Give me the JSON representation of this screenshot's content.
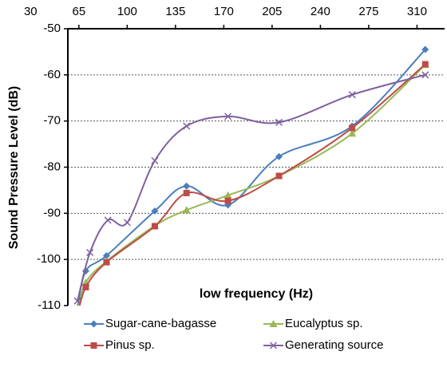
{
  "chart_data": {
    "type": "line",
    "x_label": "low frequency (Hz)",
    "y_label": "Sound Pressure Level (dB)",
    "xlim": [
      57,
      330
    ],
    "xticks": [
      30,
      65,
      100,
      135,
      170,
      205,
      240,
      275,
      310
    ],
    "ylim": [
      -110,
      -50
    ],
    "yticks": [
      -110,
      -100,
      -90,
      -80,
      -70,
      -60,
      -50
    ],
    "grid": true,
    "smooth": true,
    "legend": "bottom",
    "series": [
      {
        "name": "Sugar-cane-bagasse",
        "color": "#4a7ebb",
        "marker": "diamond",
        "x": [
          64,
          70,
          85,
          120,
          143,
          173,
          210,
          263,
          316
        ],
        "values": [
          -110.5,
          -102.5,
          -99.2,
          -89.5,
          -84.1,
          -88.2,
          -77.7,
          -71.1,
          -54.5
        ]
      },
      {
        "name": "Eucalyptus sp.",
        "color": "#98b954",
        "marker": "triangle",
        "x": [
          64,
          70,
          85,
          120,
          143,
          173,
          210,
          263,
          316
        ],
        "values": [
          -111,
          -105,
          -100.4,
          -92.7,
          -89.3,
          -86.1,
          -81.9,
          -72.7,
          -57.8
        ]
      },
      {
        "name": "Pinus sp.",
        "color": "#be4b48",
        "marker": "square",
        "x": [
          64,
          70,
          85,
          120,
          143,
          173,
          210,
          263,
          316
        ],
        "values": [
          -112,
          -106,
          -100.6,
          -92.8,
          -85.6,
          -87.3,
          -81.9,
          -71.5,
          -57.7
        ]
      },
      {
        "name": "Generating source",
        "color": "#7d60a0",
        "marker": "x",
        "x": [
          64,
          73,
          86,
          100,
          120,
          143,
          173,
          210,
          263,
          316
        ],
        "values": [
          -109,
          -98.5,
          -91.5,
          -92,
          -78.6,
          -71.1,
          -69,
          -70.3,
          -64.3,
          -60
        ]
      }
    ]
  }
}
